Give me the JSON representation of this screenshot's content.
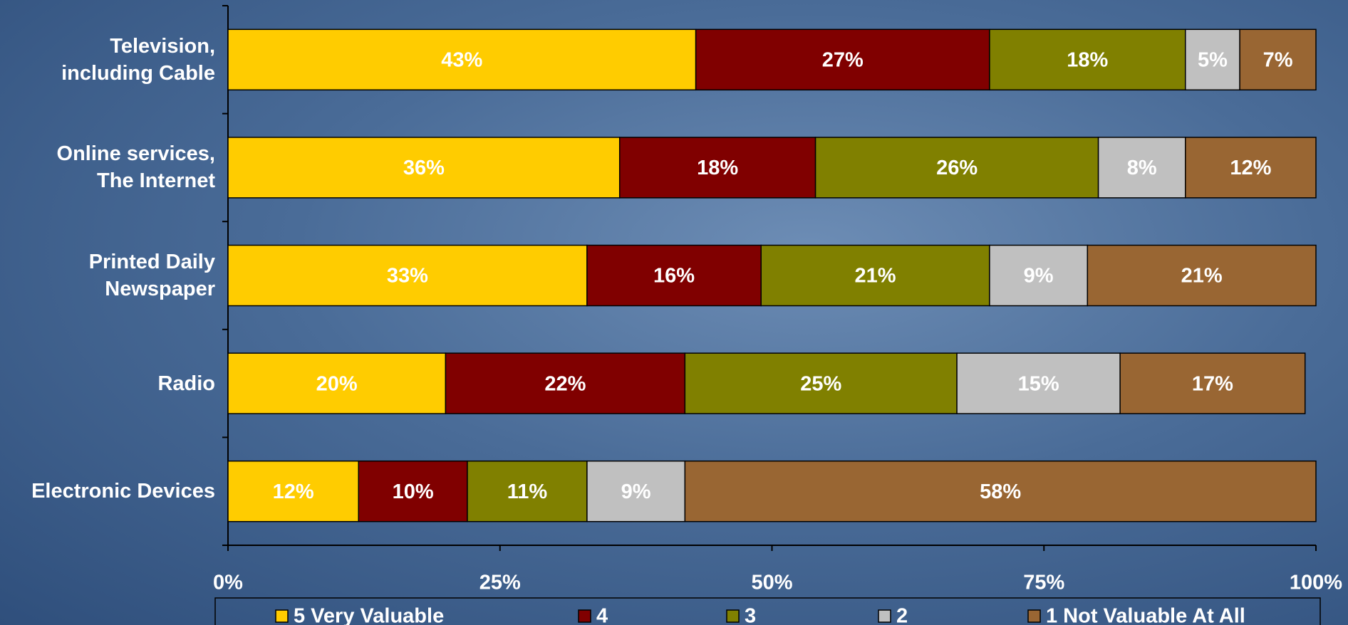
{
  "chart_data": {
    "type": "stacked-bar-horizontal",
    "categories": [
      "Television,\nincluding Cable",
      "Online services,\nThe Internet",
      "Printed Daily\nNewspaper",
      "Radio",
      "Electronic Devices"
    ],
    "series": [
      {
        "name": "5 Very Valuable",
        "color": "#FFCC00",
        "values": [
          43,
          36,
          33,
          20,
          12
        ],
        "value_labels": [
          "43%",
          "36%",
          "33%",
          "20%",
          "12%"
        ]
      },
      {
        "name": "4",
        "color": "#800000",
        "values": [
          27,
          18,
          16,
          22,
          10
        ],
        "value_labels": [
          "27%",
          "18%",
          "16%",
          "22%",
          "10%"
        ]
      },
      {
        "name": "3",
        "color": "#808000",
        "values": [
          18,
          26,
          21,
          25,
          11
        ],
        "value_labels": [
          "18%",
          "26%",
          "21%",
          "25%",
          "11%"
        ]
      },
      {
        "name": "2",
        "color": "#C0C0C0",
        "values": [
          5,
          8,
          9,
          15,
          9
        ],
        "value_labels": [
          "5%",
          "8%",
          "9%",
          "15%",
          "9%"
        ]
      },
      {
        "name": "1 Not Valuable At All",
        "color": "#996633",
        "values": [
          7,
          12,
          21,
          17,
          58
        ],
        "value_labels": [
          "7%",
          "12%",
          "21%",
          "17%",
          "58%"
        ]
      }
    ],
    "xlim": [
      0,
      100
    ],
    "xticks": [
      {
        "value": 0,
        "label": "0%"
      },
      {
        "value": 25,
        "label": "25%"
      },
      {
        "value": 50,
        "label": "50%"
      },
      {
        "value": 75,
        "label": "75%"
      },
      {
        "value": 100,
        "label": "100%"
      }
    ],
    "legend": "bottom"
  }
}
